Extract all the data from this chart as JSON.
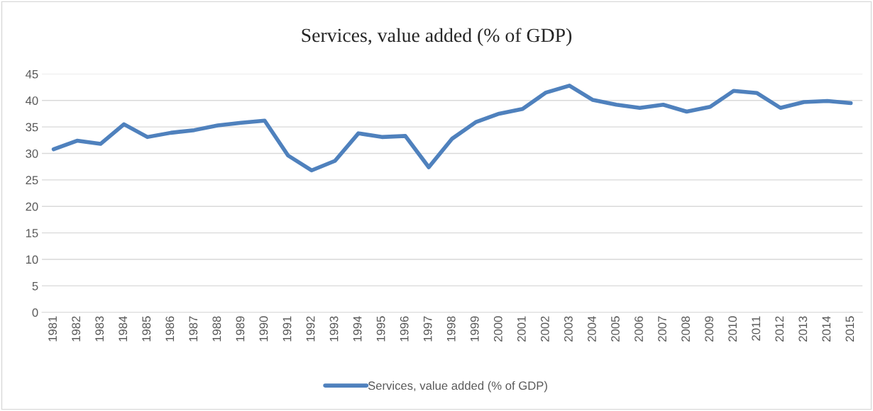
{
  "chart_data": {
    "type": "line",
    "title": "Services, value added (% of GDP)",
    "categories": [
      "1981",
      "1982",
      "1983",
      "1984",
      "1985",
      "1986",
      "1987",
      "1988",
      "1989",
      "1990",
      "1991",
      "1992",
      "1993",
      "1994",
      "1995",
      "1996",
      "1997",
      "1998",
      "1999",
      "2000",
      "2001",
      "2002",
      "2003",
      "2004",
      "2005",
      "2006",
      "2007",
      "2008",
      "2009",
      "2010",
      "2011",
      "2012",
      "2013",
      "2014",
      "2015"
    ],
    "series": [
      {
        "name": "Services, value added (% of GDP)",
        "color": "#4f81bd",
        "values": [
          30.8,
          32.4,
          31.8,
          35.5,
          33.1,
          33.9,
          34.4,
          35.3,
          35.8,
          36.2,
          29.6,
          26.8,
          28.6,
          33.8,
          33.1,
          33.3,
          27.4,
          32.8,
          35.9,
          37.5,
          38.4,
          41.5,
          42.8,
          40.1,
          39.2,
          38.6,
          39.2,
          37.9,
          38.8,
          41.8,
          41.4,
          38.6,
          39.7,
          39.9,
          39.5
        ]
      }
    ],
    "ylim": [
      0,
      45
    ],
    "yticks": [
      0,
      5,
      10,
      15,
      20,
      25,
      30,
      35,
      40,
      45
    ],
    "grid": "y",
    "legend": "bottom",
    "marker": "none",
    "line_style": "solid"
  }
}
